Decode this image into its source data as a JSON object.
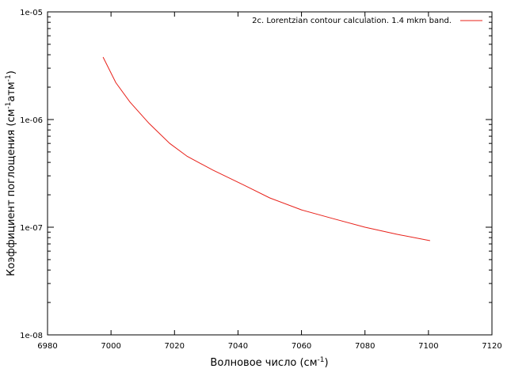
{
  "chart_data": {
    "type": "line",
    "title": "",
    "xlabel": {
      "main": "Волновое число (см",
      "sup": "-1",
      "tail": ")"
    },
    "ylabel": {
      "part1": "Коэффициент поглощения (см",
      "sup1": "-1",
      "part2": "атм",
      "sup2": "-1",
      "part3": ")"
    },
    "xlim": [
      6980,
      7120
    ],
    "ylim": [
      1e-08,
      1e-05
    ],
    "yscale": "log",
    "xticks": [
      6980,
      7000,
      7020,
      7040,
      7060,
      7080,
      7100,
      7120
    ],
    "xtick_labels": [
      "6980",
      "7000",
      "7020",
      "7040",
      "7060",
      "7080",
      "7100",
      "7120"
    ],
    "yticks": [
      1e-08,
      1e-07,
      1e-06,
      1e-05
    ],
    "ytick_labels": [
      "1e-08",
      "1e-07",
      "1e-06",
      "1e-05"
    ],
    "grid": false,
    "legend_position": "top-right",
    "series": [
      {
        "name": "2c. Lorentzian contour calculation. 1.4 mkm band.",
        "color": "#e8211a",
        "x": [
          6997.5,
          7001.5,
          7006,
          7012,
          7018.5,
          7024,
          7032,
          7042,
          7050,
          7060,
          7070,
          7080,
          7090,
          7100.5
        ],
        "y": [
          3.8e-06,
          2.2e-06,
          1.45e-06,
          9.2e-07,
          6e-07,
          4.55e-07,
          3.4e-07,
          2.45e-07,
          1.87e-07,
          1.45e-07,
          1.2e-07,
          1e-07,
          8.6e-08,
          7.5e-08
        ]
      }
    ]
  }
}
